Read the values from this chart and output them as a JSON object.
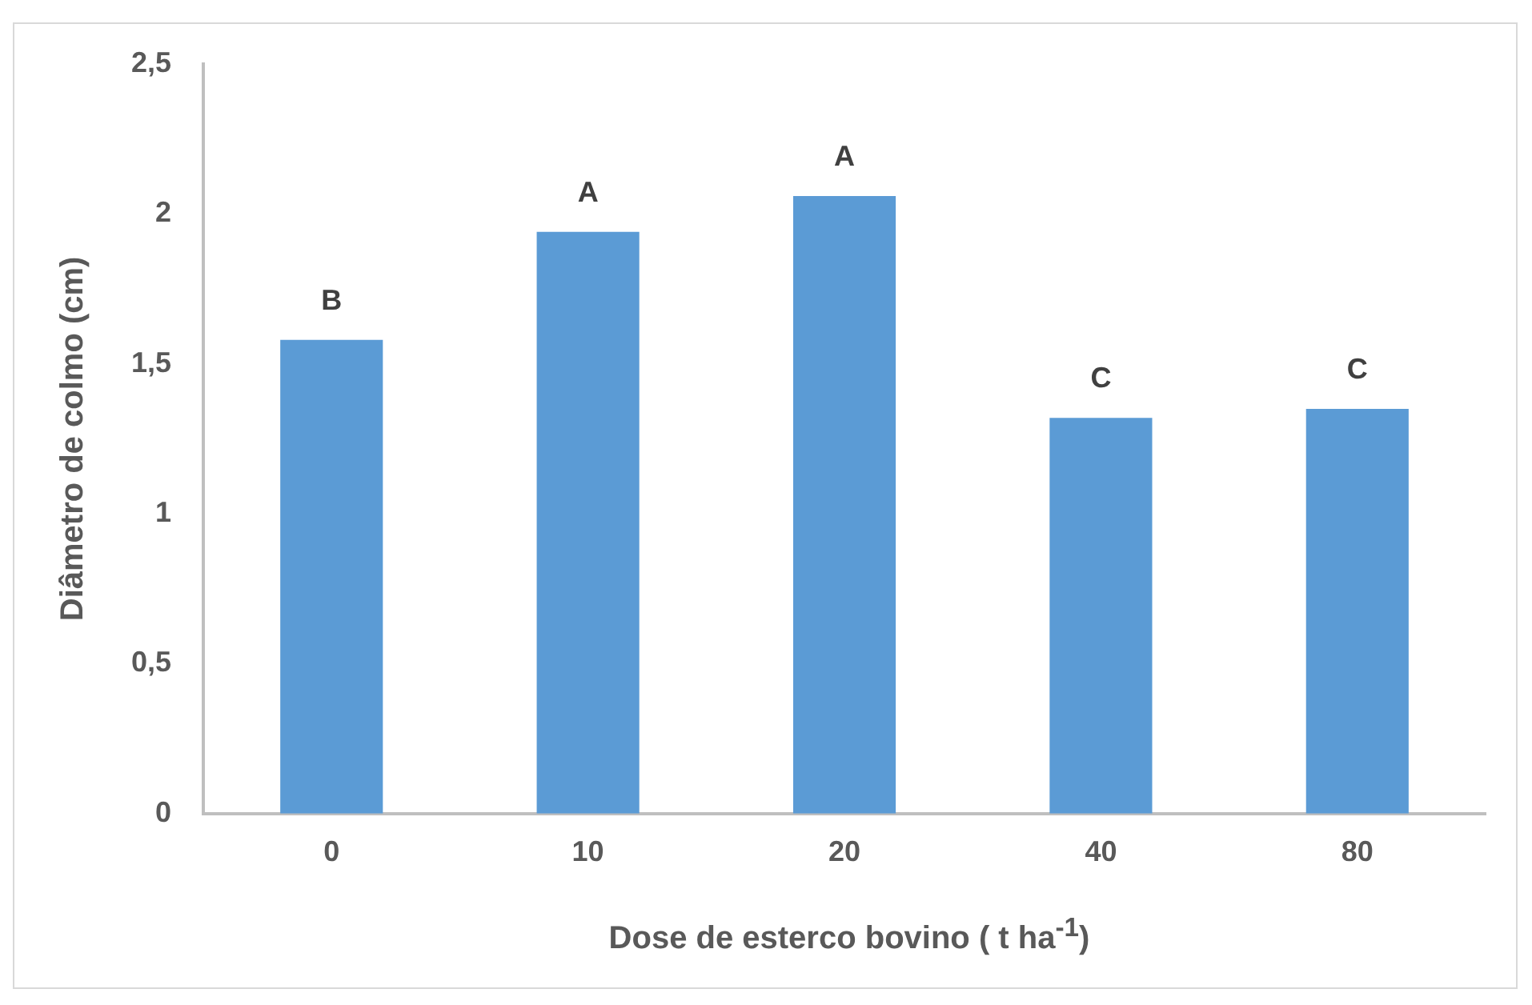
{
  "chart_data": {
    "type": "bar",
    "xlabel": "Dose de esterco bovino ( t ha$^{-1}$)",
    "ylabel": "Diâmetro de colmo (cm)",
    "categories": [
      "0",
      "10",
      "20",
      "40",
      "80"
    ],
    "values": [
      1.58,
      1.94,
      2.06,
      1.32,
      1.35
    ],
    "color": "#5b9bd5",
    "ylim": [
      0,
      2.5
    ],
    "yticks": [
      {
        "value": 0,
        "label": "0"
      },
      {
        "value": 0.5,
        "label": "0,5"
      },
      {
        "value": 1,
        "label": "1"
      },
      {
        "value": 1.5,
        "label": "1,5"
      },
      {
        "value": 2,
        "label": "2"
      },
      {
        "value": 2.5,
        "label": "2,5"
      }
    ],
    "grid": false,
    "legend": false,
    "annotations": [
      {
        "text": "B",
        "x": "0",
        "y": 1.58
      },
      {
        "text": "A",
        "x": "10",
        "y": 1.94
      },
      {
        "text": "A",
        "x": "20",
        "y": 2.06
      },
      {
        "text": "C",
        "x": "40",
        "y": 1.32
      },
      {
        "text": "C",
        "x": "80",
        "y": 1.35
      }
    ]
  }
}
